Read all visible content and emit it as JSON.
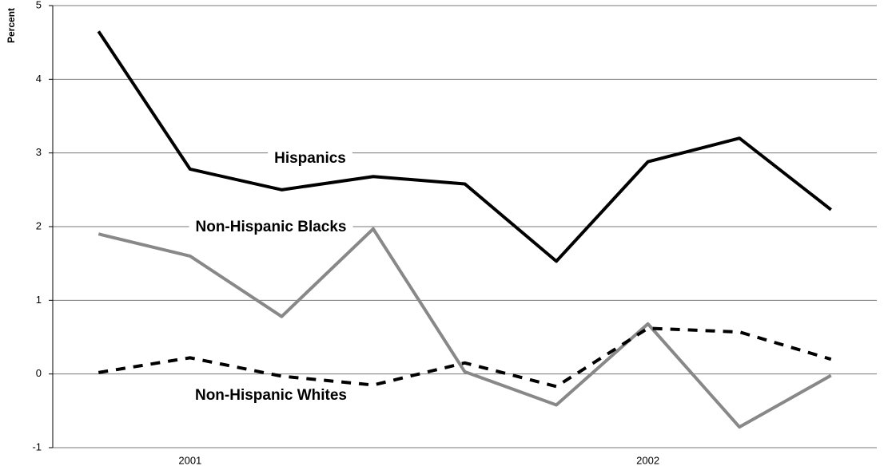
{
  "chart_data": {
    "type": "line",
    "y_label": "Percent",
    "categories": [
      null,
      "2001",
      null,
      null,
      null,
      null,
      "2002",
      null,
      null
    ],
    "series": [
      {
        "name": "Hispanics",
        "color": "#000000",
        "line_style": "solid",
        "values": [
          4.65,
          2.78,
          2.5,
          2.68,
          2.58,
          1.53,
          2.88,
          3.2,
          2.23
        ]
      },
      {
        "name": "Non-Hispanic Blacks",
        "color": "#888888",
        "line_style": "solid",
        "values": [
          1.9,
          1.6,
          0.78,
          1.97,
          0.03,
          -0.42,
          0.68,
          -0.72,
          -0.02
        ]
      },
      {
        "name": "Non-Hispanic Whites",
        "color": "#000000",
        "line_style": "dashed",
        "values": [
          0.02,
          0.22,
          -0.03,
          -0.15,
          0.15,
          -0.17,
          0.62,
          0.57,
          0.2
        ]
      }
    ],
    "ylim": [
      -1,
      5
    ],
    "yticks": [
      -1,
      0,
      1,
      2,
      3,
      4,
      5
    ],
    "grid": true
  }
}
